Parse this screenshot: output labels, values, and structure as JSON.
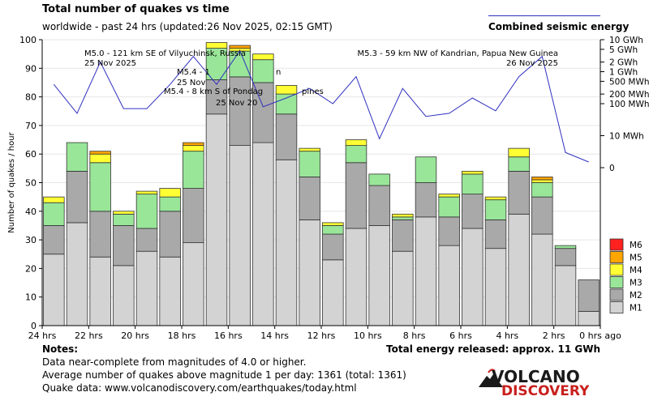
{
  "header": {
    "title": "Total number of quakes vs time",
    "subtitle": "worldwide - past 24 hrs (updated:26 Nov 2025, 02:15 GMT)",
    "energy_legend": "Combined seismic energy"
  },
  "chart_data": {
    "type": "bar",
    "stacked": true,
    "ylabel": "Number of quakes / hour",
    "ylim": [
      0,
      100
    ],
    "yticks": [
      0,
      10,
      20,
      30,
      40,
      50,
      60,
      70,
      80,
      90,
      100
    ],
    "xtick_labels": [
      "24 hrs",
      "22 hrs",
      "20 hrs",
      "18 hrs",
      "16 hrs",
      "14 hrs",
      "12 hrs",
      "10 hrs",
      "8 hrs",
      "6 hrs",
      "4 hrs",
      "2 hrs",
      "0 hrs ago"
    ],
    "series": [
      {
        "name": "M1",
        "color": "#d3d3d3",
        "values": [
          25,
          36,
          24,
          21,
          26,
          24,
          29,
          74,
          63,
          64,
          58,
          37,
          23,
          34,
          35,
          26,
          38,
          28,
          34,
          27,
          39,
          32,
          21,
          5
        ]
      },
      {
        "name": "M2",
        "color": "#a9a9a9",
        "values": [
          10,
          18,
          16,
          14,
          8,
          16,
          19,
          12,
          24,
          21,
          16,
          15,
          9,
          23,
          14,
          11,
          12,
          10,
          12,
          10,
          15,
          13,
          6,
          11
        ]
      },
      {
        "name": "M3",
        "color": "#99e699",
        "values": [
          8,
          10,
          17,
          4,
          12,
          5,
          13,
          11,
          9,
          8,
          7,
          9,
          3,
          6,
          4,
          1,
          9,
          7,
          7,
          7,
          5,
          5,
          1,
          0
        ]
      },
      {
        "name": "M4",
        "color": "#ffff33",
        "values": [
          2,
          0,
          3,
          1,
          1,
          3,
          2,
          2,
          1,
          2,
          3,
          1,
          1,
          2,
          0,
          1,
          0,
          1,
          1,
          1,
          3,
          1,
          0,
          0
        ]
      },
      {
        "name": "M5",
        "color": "#ffa500",
        "values": [
          0,
          0,
          1,
          0,
          0,
          0,
          1,
          0,
          1,
          0,
          0,
          0,
          0,
          0,
          0,
          0,
          0,
          0,
          0,
          0,
          0,
          1,
          0,
          0
        ]
      },
      {
        "name": "M6",
        "color": "#ff2020",
        "values": [
          0,
          0,
          0,
          0,
          0,
          0,
          0,
          0,
          0,
          0,
          0,
          0,
          0,
          0,
          0,
          0,
          0,
          0,
          0,
          0,
          0,
          0,
          0,
          0
        ]
      }
    ],
    "energy": {
      "name": "Combined seismic energy",
      "color": "#3030c0",
      "ticks": [
        "10 GWh",
        "5 GWh",
        "2 GWh",
        "1 GWh",
        "500 MWh",
        "200 MWh",
        "100 MWh",
        "10 MWh",
        "0"
      ],
      "tick_values": [
        10000,
        5000,
        2000,
        1000,
        500,
        200,
        100,
        10,
        0
      ],
      "values_mwh": [
        400,
        50,
        2000,
        70,
        70,
        400,
        3000,
        400,
        4500,
        80,
        150,
        300,
        100,
        700,
        8,
        300,
        40,
        50,
        150,
        60,
        700,
        3000,
        3,
        1.5
      ]
    },
    "annotations": [
      {
        "text": "M5.0 - 121 km SE of Vilyuchinsk, Russia",
        "text2": "25 Nov 2025"
      },
      {
        "text": "M5.4 - 1",
        "text2": "25 Nov",
        "text3": "M5.4 - 8 km S of Pondag",
        "text4": "25 Nov 20"
      },
      {
        "text": "n",
        "text2": "pines"
      },
      {
        "text": "M5.3 - 59 km NW of Kandrian, Papua New Guinea",
        "text2": "26 Nov 2025"
      }
    ]
  },
  "notes": {
    "heading": "Notes:",
    "line1": "Data near-complete from magnitudes of 4.0 or higher.",
    "line2": "Average number of quakes above magnitude 1 per day: 1361 (total: 1361)",
    "line3": "Quake data: www.volcanodiscovery.com/earthquakes/today.html",
    "total_energy": "Total energy released: approx. 11 GWh"
  },
  "logo": {
    "word1": "VOLCANO",
    "word2": "DISCOVERY",
    "color_dark": "#1a1a1a",
    "color_accent": "#c8201e"
  }
}
